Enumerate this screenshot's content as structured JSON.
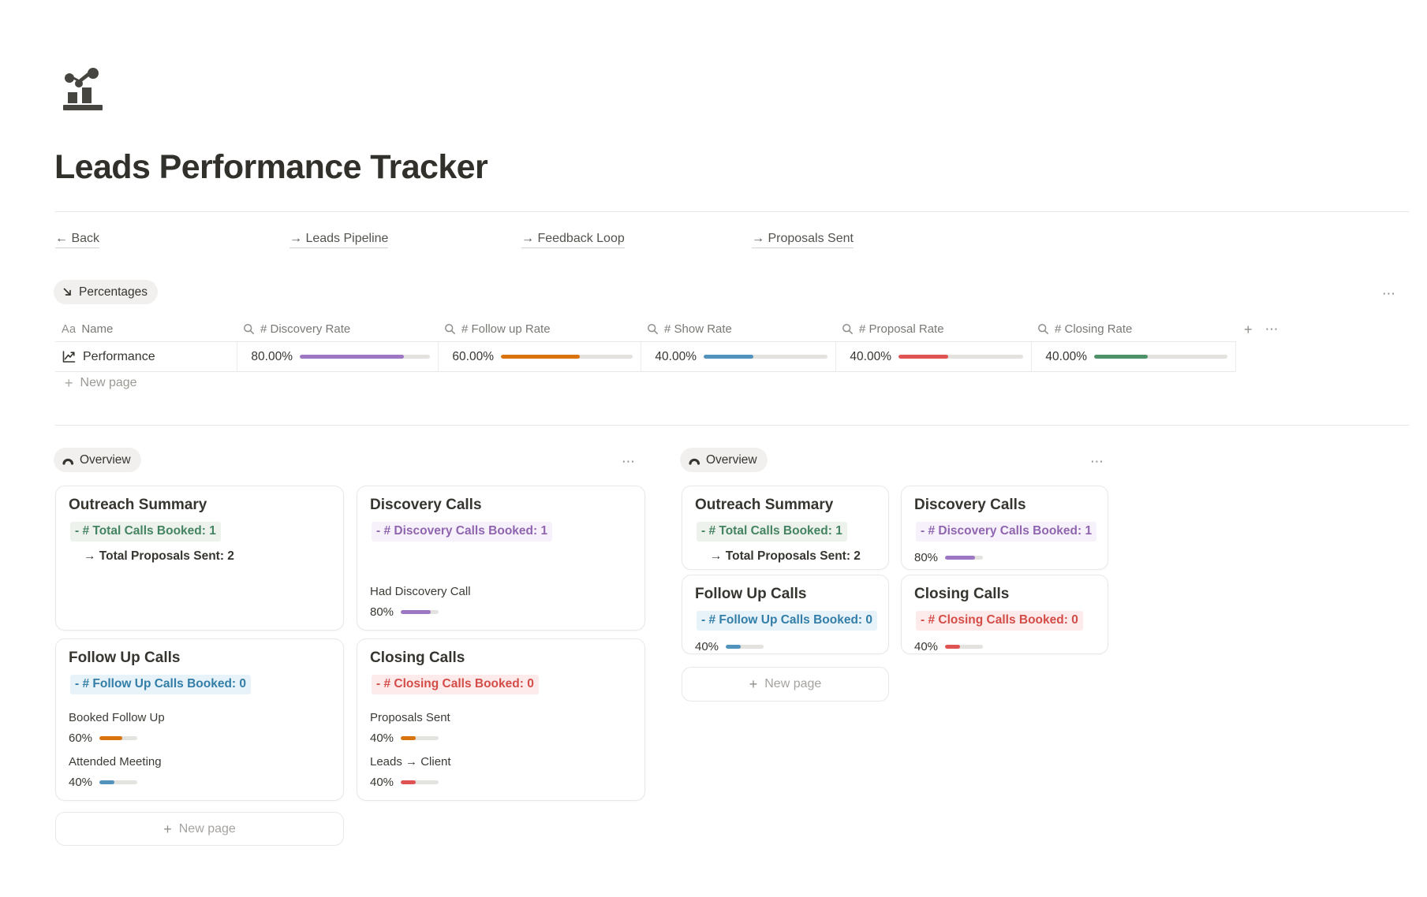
{
  "page": {
    "title": "Leads Performance Tracker",
    "icon": "bar-chart-with-trend"
  },
  "glyphs": {
    "plus": "+",
    "dots": "⋯",
    "new_page": "New page"
  },
  "nav": {
    "items": [
      {
        "label": "← Back"
      },
      {
        "label": "→ Leads Pipeline"
      },
      {
        "label": "→ Feedback Loop"
      },
      {
        "label": "→ Proposals Sent"
      }
    ]
  },
  "percentages_section": {
    "view_label": "Percentages",
    "columns": [
      {
        "label": "Name",
        "icon": "text-property-icon"
      },
      {
        "label": "# Discovery Rate",
        "icon": "rollup-icon"
      },
      {
        "label": "# Follow up Rate",
        "icon": "rollup-icon"
      },
      {
        "label": "# Show Rate",
        "icon": "rollup-icon"
      },
      {
        "label": "# Proposal Rate",
        "icon": "rollup-icon"
      },
      {
        "label": "# Closing Rate",
        "icon": "rollup-icon"
      }
    ],
    "row": {
      "name": "Performance",
      "cells": [
        {
          "label": "80.00%",
          "percent": 80,
          "color": "#9d76c4"
        },
        {
          "label": "60.00%",
          "percent": 60,
          "color": "#d9730d"
        },
        {
          "label": "40.00%",
          "percent": 40,
          "color": "#5193bc"
        },
        {
          "label": "40.00%",
          "percent": 40,
          "color": "#df5452"
        },
        {
          "label": "40.00%",
          "percent": 40,
          "color": "#4d9168"
        }
      ]
    }
  },
  "overview_left": {
    "view_label": "Overview",
    "cards": {
      "outreach": {
        "title": "Outreach Summary",
        "highlight": {
          "text": "- # Total Calls Booked: 1",
          "color": "#448361",
          "bg": "#edf3ec"
        },
        "secondary": "→ Total Proposals Sent: 2"
      },
      "discovery": {
        "title": "Discovery Calls",
        "highlight": {
          "text": "- # Discovery Calls Booked: 1",
          "color": "#9065b0",
          "bg": "#f6f1fa"
        },
        "metric_label": "Had Discovery Call",
        "bar": {
          "label": "80%",
          "percent": 80,
          "color": "#9d76c4"
        }
      },
      "followup": {
        "title": "Follow Up Calls",
        "highlight": {
          "text": "- # Follow Up Calls Booked: 0",
          "color": "#337ea9",
          "bg": "#e7f3f8"
        },
        "metric1_label": "Booked Follow Up",
        "bar1": {
          "label": "60%",
          "percent": 60,
          "color": "#d9730d"
        },
        "metric2_label": "Attended Meeting",
        "bar2": {
          "label": "40%",
          "percent": 40,
          "color": "#5193bc"
        }
      },
      "closing": {
        "title": "Closing Calls",
        "highlight": {
          "text": "- # Closing Calls Booked: 0",
          "color": "#d44c47",
          "bg": "#fdebec"
        },
        "metric1_label": "Proposals Sent",
        "bar1": {
          "label": "40%",
          "percent": 40,
          "color": "#d9730d"
        },
        "metric2_label": "Leads → Client",
        "bar2": {
          "label": "40%",
          "percent": 40,
          "color": "#df5452"
        }
      }
    }
  },
  "overview_right": {
    "view_label": "Overview",
    "cards": {
      "outreach": {
        "title": "Outreach Summary",
        "highlight": {
          "text": "- # Total Calls Booked: 1",
          "color": "#448361",
          "bg": "#edf3ec"
        },
        "secondary": "→ Total Proposals Sent: 2"
      },
      "discovery": {
        "title": "Discovery Calls",
        "highlight": {
          "text": "- # Discovery Calls Booked: 1",
          "color": "#9065b0",
          "bg": "#f6f1fa"
        },
        "bar": {
          "label": "80%",
          "percent": 80,
          "color": "#9d76c4"
        }
      },
      "followup": {
        "title": "Follow Up Calls",
        "highlight": {
          "text": "- # Follow Up Calls Booked: 0",
          "color": "#337ea9",
          "bg": "#e7f3f8"
        },
        "bar": {
          "label": "40%",
          "percent": 40,
          "color": "#5193bc"
        }
      },
      "closing": {
        "title": "Closing Calls",
        "highlight": {
          "text": "- # Closing Calls Booked: 0",
          "color": "#d44c47",
          "bg": "#fdebec"
        },
        "bar": {
          "label": "40%",
          "percent": 40,
          "color": "#df5452"
        }
      }
    }
  }
}
